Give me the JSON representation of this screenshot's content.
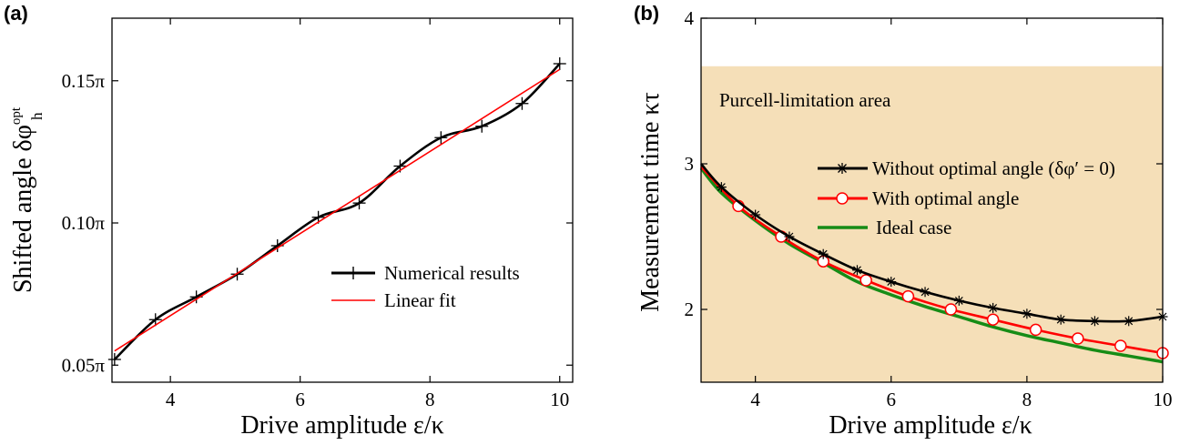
{
  "chart_data": [
    {
      "panel_label": "(a)",
      "type": "line",
      "xlabel": "Drive amplitude  ε/κ",
      "ylabel": "Shifted angle  δφ",
      "ylabel_sup": "opt",
      "ylabel_sub": "h",
      "xlim": [
        3.1,
        10.2
      ],
      "ylim": [
        0.044,
        0.172
      ],
      "x_ticks": [
        4,
        6,
        8,
        10
      ],
      "x_tick_labels": [
        "4",
        "6",
        "8",
        "10"
      ],
      "y_ticks": [
        0.05,
        0.1,
        0.15
      ],
      "y_tick_labels": [
        "0.05π",
        "0.10π",
        "0.15π"
      ],
      "grid": false,
      "legend_position": "lower-right",
      "series": [
        {
          "name": "Numerical results",
          "color": "#000000",
          "marker": "plus",
          "x": [
            3.14,
            3.77,
            4.4,
            5.03,
            5.65,
            6.28,
            6.91,
            7.54,
            8.17,
            8.8,
            9.42,
            10.0
          ],
          "y": [
            0.052,
            0.066,
            0.074,
            0.082,
            0.092,
            0.102,
            0.107,
            0.12,
            0.13,
            0.134,
            0.142,
            0.156
          ]
        },
        {
          "name": "Linear fit",
          "color": "#ff0000",
          "marker": "none",
          "x": [
            3.14,
            10.0
          ],
          "y": [
            0.055,
            0.154
          ]
        }
      ]
    },
    {
      "panel_label": "(b)",
      "type": "line",
      "xlabel": "Drive amplitude  ε/κ",
      "ylabel": "Measurement time κτ",
      "xlim": [
        3.2,
        10.0
      ],
      "ylim": [
        1.5,
        4.0
      ],
      "x_ticks": [
        4,
        6,
        8,
        10
      ],
      "x_tick_labels": [
        "4",
        "6",
        "8",
        "10"
      ],
      "y_ticks": [
        2,
        3,
        4
      ],
      "y_tick_labels": [
        "2",
        "3",
        "4"
      ],
      "grid": false,
      "region": {
        "label": "Purcell-limitation area",
        "y_range": [
          1.5,
          3.67
        ],
        "color": "#f5dfb8"
      },
      "legend_position": "center-right",
      "series": [
        {
          "name": "Without optimal angle",
          "name_suffix": "(δφ′ = 0)",
          "color": "#000000",
          "marker": "asterisk",
          "x": [
            3.2,
            3.5,
            4.0,
            4.5,
            5.0,
            5.5,
            6.0,
            6.5,
            7.0,
            7.5,
            8.0,
            8.5,
            9.0,
            9.5,
            10.0
          ],
          "y": [
            3.0,
            2.84,
            2.65,
            2.5,
            2.38,
            2.27,
            2.19,
            2.12,
            2.06,
            2.01,
            1.97,
            1.93,
            1.92,
            1.92,
            1.95
          ]
        },
        {
          "name": "With optimal angle",
          "color": "#ff0000",
          "marker": "circle",
          "x": [
            3.2,
            3.75,
            4.38,
            5.0,
            5.63,
            6.25,
            6.88,
            7.5,
            8.13,
            8.75,
            9.38,
            10.0
          ],
          "y": [
            2.98,
            2.71,
            2.5,
            2.33,
            2.2,
            2.09,
            2.0,
            1.93,
            1.86,
            1.8,
            1.75,
            1.7
          ]
        },
        {
          "name": "Ideal case",
          "color": "#168c16",
          "marker": "none",
          "x": [
            3.2,
            3.5,
            4.0,
            4.5,
            5.0,
            5.5,
            6.0,
            6.5,
            7.0,
            7.5,
            8.0,
            8.5,
            9.0,
            9.5,
            10.0
          ],
          "y": [
            2.97,
            2.8,
            2.61,
            2.45,
            2.32,
            2.19,
            2.1,
            2.02,
            1.95,
            1.88,
            1.82,
            1.77,
            1.72,
            1.68,
            1.64
          ]
        }
      ]
    }
  ]
}
